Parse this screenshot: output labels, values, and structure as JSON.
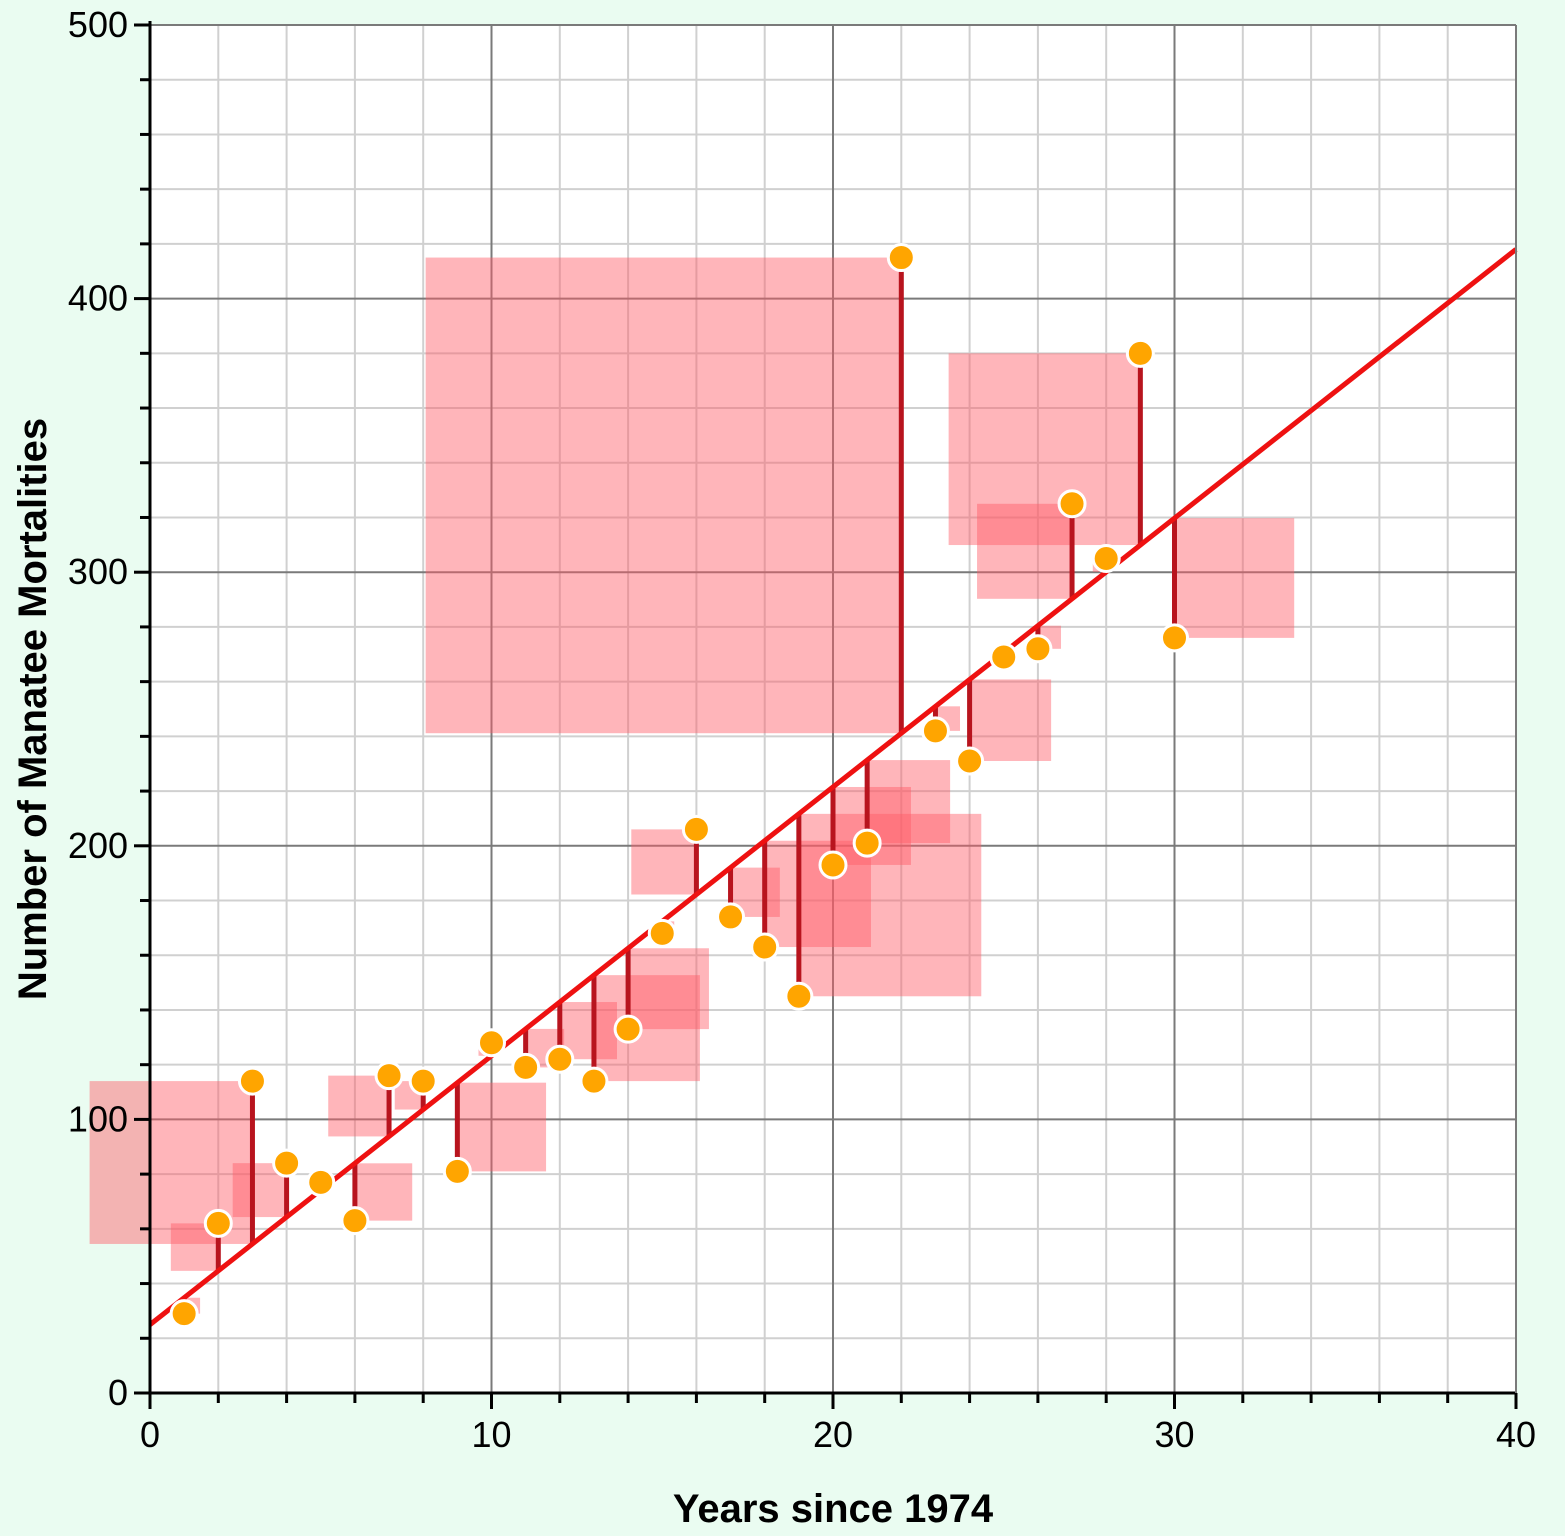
{
  "chart_data": {
    "type": "scatter",
    "title": "",
    "xlabel": "Years since 1974",
    "ylabel": "Number of Manatee Mortalities",
    "xlim": [
      0,
      40
    ],
    "ylim": [
      0,
      500
    ],
    "x_ticks": [
      "0",
      "10",
      "20",
      "30",
      "40"
    ],
    "y_ticks": [
      "0",
      "100",
      "200",
      "300",
      "400",
      "500"
    ],
    "grid": true,
    "show_squared_residuals": true,
    "regression_line": {
      "intercept": 25,
      "slope": 9.825
    },
    "points": [
      {
        "x": 1,
        "y": 29
      },
      {
        "x": 2,
        "y": 62
      },
      {
        "x": 3,
        "y": 114
      },
      {
        "x": 4,
        "y": 84
      },
      {
        "x": 5,
        "y": 77
      },
      {
        "x": 6,
        "y": 63
      },
      {
        "x": 7,
        "y": 116
      },
      {
        "x": 8,
        "y": 114
      },
      {
        "x": 9,
        "y": 81
      },
      {
        "x": 10,
        "y": 128
      },
      {
        "x": 11,
        "y": 119
      },
      {
        "x": 12,
        "y": 122
      },
      {
        "x": 13,
        "y": 114
      },
      {
        "x": 14,
        "y": 133
      },
      {
        "x": 15,
        "y": 168
      },
      {
        "x": 16,
        "y": 206
      },
      {
        "x": 17,
        "y": 174
      },
      {
        "x": 18,
        "y": 163
      },
      {
        "x": 19,
        "y": 145
      },
      {
        "x": 20,
        "y": 193
      },
      {
        "x": 21,
        "y": 201
      },
      {
        "x": 22,
        "y": 415
      },
      {
        "x": 23,
        "y": 242
      },
      {
        "x": 24,
        "y": 231
      },
      {
        "x": 25,
        "y": 269
      },
      {
        "x": 26,
        "y": 272
      },
      {
        "x": 27,
        "y": 325
      },
      {
        "x": 28,
        "y": 305
      },
      {
        "x": 29,
        "y": 380
      },
      {
        "x": 30,
        "y": 276
      }
    ],
    "colors": {
      "background": "#eafcf1",
      "plot_background": "#ffffff",
      "major_grid": "#7a7a7a",
      "minor_grid": "#d0d0d0",
      "regression_line": "#ee1111",
      "residual_line": "#b8141e",
      "residual_square": "#ff5a66",
      "point_fill": "#ffa500",
      "point_stroke": "#ffffff"
    }
  }
}
